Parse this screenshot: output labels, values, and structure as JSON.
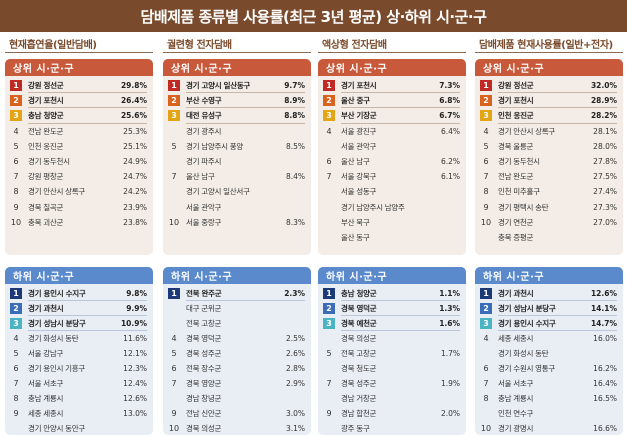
{
  "title": "담배제품 종류별 사용률(최근 3년 평균) 상·하위 시·군·구",
  "upper_label": "상위 시·군·구",
  "lower_label": "하위 시·군·구",
  "columns": [
    {
      "heading": "현재흡연율(일반담배)",
      "upper": [
        {
          "rank": "1",
          "region": "강원 정선군",
          "value": "29.8%"
        },
        {
          "rank": "2",
          "region": "경기 포천시",
          "value": "26.4%"
        },
        {
          "rank": "3",
          "region": "충남 청양군",
          "value": "25.6%"
        },
        {
          "rank": "4",
          "region": "전남 완도군",
          "value": "25.3%"
        },
        {
          "rank": "5",
          "region": "인천 옹진군",
          "value": "25.1%"
        },
        {
          "rank": "6",
          "region": "경기 동두천시",
          "value": "24.9%"
        },
        {
          "rank": "7",
          "region": "강원 평창군",
          "value": "24.7%"
        },
        {
          "rank": "8",
          "region": "경기 안산시 상록구",
          "value": "24.2%"
        },
        {
          "rank": "9",
          "region": "경북 칠곡군",
          "value": "23.9%"
        },
        {
          "rank": "10",
          "region": "충북 괴산군",
          "value": "23.8%"
        }
      ],
      "lower": [
        {
          "rank": "1",
          "region": "경기 용인시 수지구",
          "value": "9.8%"
        },
        {
          "rank": "2",
          "region": "경기 과천시",
          "value": "9.9%"
        },
        {
          "rank": "3",
          "region": "경기 성남시 분당구",
          "value": "10.9%"
        },
        {
          "rank": "4",
          "region": "경기 화성시 동탄",
          "value": "11.6%"
        },
        {
          "rank": "5",
          "region": "서울 강남구",
          "value": "12.1%"
        },
        {
          "rank": "6",
          "region": "경기 용인시 기흥구",
          "value": "12.3%"
        },
        {
          "rank": "7",
          "region": "서울 서초구",
          "value": "12.4%"
        },
        {
          "rank": "8",
          "region": "충남 계룡시",
          "value": "12.6%"
        },
        {
          "rank": "9",
          "region": "세종 세종시",
          "value": "13.0%"
        },
        {
          "rank": "",
          "region": "경기 안양시 동안구",
          "value": ""
        },
        {
          "rank": "",
          "region": "경기 광명시",
          "value": ""
        }
      ]
    },
    {
      "heading": "궐련형 전자담배",
      "upper": [
        {
          "rank": "1",
          "region": "경기 고양시 일산동구",
          "value": "9.7%"
        },
        {
          "rank": "2",
          "region": "부산 수영구",
          "value": "8.9%"
        },
        {
          "rank": "3",
          "region": "대전 유성구",
          "value": "8.8%"
        },
        {
          "rank": "",
          "region": "경기 광주시",
          "value": ""
        },
        {
          "rank": "5",
          "region": "경기 남양주시 풍양",
          "value": "8.5%"
        },
        {
          "rank": "",
          "region": "경기 파주시",
          "value": ""
        },
        {
          "rank": "7",
          "region": "울산 남구",
          "value": "8.4%"
        },
        {
          "rank": "",
          "region": "경기 고양시 일산서구",
          "value": ""
        },
        {
          "rank": "",
          "region": "서울 관악구",
          "value": ""
        },
        {
          "rank": "10",
          "region": "서울 중랑구",
          "value": "8.3%"
        }
      ],
      "lower": [
        {
          "rank": "1",
          "region": "전북 완주군",
          "value": "2.3%"
        },
        {
          "rank": "",
          "region": "대구 군위군",
          "value": ""
        },
        {
          "rank": "",
          "region": "전북 고창군",
          "value": ""
        },
        {
          "rank": "4",
          "region": "경북 영덕군",
          "value": "2.5%"
        },
        {
          "rank": "5",
          "region": "경북 성주군",
          "value": "2.6%"
        },
        {
          "rank": "6",
          "region": "전북 장수군",
          "value": "2.8%"
        },
        {
          "rank": "7",
          "region": "경북 영양군",
          "value": "2.9%"
        },
        {
          "rank": "",
          "region": "경남 창녕군",
          "value": ""
        },
        {
          "rank": "9",
          "region": "전남 신안군",
          "value": "3.0%"
        },
        {
          "rank": "10",
          "region": "경북 의성군",
          "value": "3.1%"
        }
      ]
    },
    {
      "heading": "액상형 전자담배",
      "upper": [
        {
          "rank": "1",
          "region": "경기 포천시",
          "value": "7.3%"
        },
        {
          "rank": "2",
          "region": "울산 중구",
          "value": "6.8%"
        },
        {
          "rank": "3",
          "region": "부산 기장군",
          "value": "6.7%"
        },
        {
          "rank": "4",
          "region": "서울 광진구",
          "value": "6.4%"
        },
        {
          "rank": "",
          "region": "서울 관악구",
          "value": ""
        },
        {
          "rank": "6",
          "region": "울산 남구",
          "value": "6.2%"
        },
        {
          "rank": "7",
          "region": "서울 강북구",
          "value": "6.1%"
        },
        {
          "rank": "",
          "region": "서울 성동구",
          "value": ""
        },
        {
          "rank": "",
          "region": "경기 남양주시 남양주",
          "value": ""
        },
        {
          "rank": "",
          "region": "부산 북구",
          "value": ""
        },
        {
          "rank": "",
          "region": "울산 동구",
          "value": ""
        }
      ],
      "lower": [
        {
          "rank": "1",
          "region": "충남 청양군",
          "value": "1.1%"
        },
        {
          "rank": "2",
          "region": "경북 영덕군",
          "value": "1.3%"
        },
        {
          "rank": "3",
          "region": "경북 예천군",
          "value": "1.6%"
        },
        {
          "rank": "",
          "region": "경북 의성군",
          "value": ""
        },
        {
          "rank": "5",
          "region": "전북 고창군",
          "value": "1.7%"
        },
        {
          "rank": "",
          "region": "경북 청도군",
          "value": ""
        },
        {
          "rank": "7",
          "region": "경북 성주군",
          "value": "1.9%"
        },
        {
          "rank": "",
          "region": "경남 거창군",
          "value": ""
        },
        {
          "rank": "9",
          "region": "경남 합천군",
          "value": "2.0%"
        },
        {
          "rank": "",
          "region": "광주 동구",
          "value": ""
        },
        {
          "rank": "",
          "region": "전남 담양군",
          "value": ""
        }
      ]
    },
    {
      "heading": "담배제품 현재사용률(일반+전자)",
      "upper": [
        {
          "rank": "1",
          "region": "강원 정선군",
          "value": "32.0%"
        },
        {
          "rank": "2",
          "region": "경기 포천시",
          "value": "28.9%"
        },
        {
          "rank": "3",
          "region": "인천 옹진군",
          "value": "28.2%"
        },
        {
          "rank": "4",
          "region": "경기 안산시 상록구",
          "value": "28.1%"
        },
        {
          "rank": "5",
          "region": "경북 울릉군",
          "value": "28.0%"
        },
        {
          "rank": "6",
          "region": "경기 동두천시",
          "value": "27.8%"
        },
        {
          "rank": "7",
          "region": "전남 완도군",
          "value": "27.5%"
        },
        {
          "rank": "8",
          "region": "인천 미추홀구",
          "value": "27.4%"
        },
        {
          "rank": "9",
          "region": "경기 평택시 송탄",
          "value": "27.3%"
        },
        {
          "rank": "10",
          "region": "경기 연천군",
          "value": "27.0%"
        },
        {
          "rank": "",
          "region": "충북 증평군",
          "value": ""
        }
      ],
      "lower": [
        {
          "rank": "1",
          "region": "경기 과천시",
          "value": "12.6%"
        },
        {
          "rank": "2",
          "region": "경기 성남시 분당구",
          "value": "14.1%"
        },
        {
          "rank": "3",
          "region": "경기 용인시 수지구",
          "value": "14.7%"
        },
        {
          "rank": "4",
          "region": "세종 세종시",
          "value": "16.0%"
        },
        {
          "rank": "",
          "region": "경기 화성시 동탄",
          "value": ""
        },
        {
          "rank": "6",
          "region": "경기 수원시 영통구",
          "value": "16.2%"
        },
        {
          "rank": "7",
          "region": "서울 서초구",
          "value": "16.4%"
        },
        {
          "rank": "8",
          "region": "충남 계룡시",
          "value": "16.5%"
        },
        {
          "rank": "",
          "region": "인천 연수구",
          "value": ""
        },
        {
          "rank": "10",
          "region": "경기 광명시",
          "value": "16.6%"
        }
      ]
    }
  ]
}
